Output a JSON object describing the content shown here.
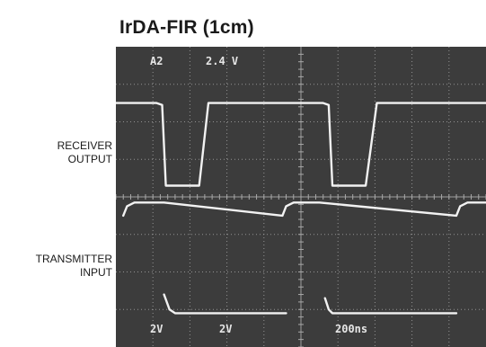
{
  "title": "IrDA-FIR (1cm)",
  "labels": {
    "receiver": [
      "RECEIVER",
      "OUTPUT"
    ],
    "transmitter": [
      "TRANSMITTER",
      "INPUT"
    ]
  },
  "colors": {
    "screen": "#3c3c3c",
    "trace": "#f2f2f2",
    "grid": "#a8a8a8"
  },
  "scope_readouts": {
    "top_channel": "A2",
    "top_value": "2.4 V",
    "ch1_scale": "2V",
    "ch2_scale": "2V",
    "timebase": "200ns"
  },
  "chart_data": {
    "type": "line",
    "title": "IrDA-FIR (1cm)",
    "grid": true,
    "x_units": "divisions",
    "y_units": "divisions",
    "xlim": [
      0,
      10
    ],
    "ylim": [
      0,
      8
    ],
    "series": [
      {
        "name": "RECEIVER OUTPUT",
        "x": [
          0,
          1.1,
          1.25,
          1.35,
          1.95,
          2.25,
          2.5,
          5.6,
          5.75,
          5.85,
          6.5,
          6.75,
          7.05,
          10
        ],
        "y": [
          6.5,
          6.5,
          6.45,
          4.3,
          4.3,
          4.3,
          6.5,
          6.5,
          6.45,
          4.3,
          4.3,
          4.3,
          6.5,
          6.5
        ]
      },
      {
        "name": "TRANSMITTER INPUT",
        "x": [
          0.2,
          0.3,
          0.5,
          1.3,
          4.5,
          4.6,
          4.8,
          5.5,
          9.2,
          9.3,
          9.5,
          10
        ],
        "y": [
          3.5,
          3.75,
          3.85,
          3.85,
          3.5,
          3.75,
          3.85,
          3.85,
          3.5,
          3.75,
          3.85,
          3.85
        ]
      },
      {
        "x": [
          1.3,
          1.45,
          1.6,
          4.6
        ],
        "y": [
          1.4,
          1.0,
          0.9,
          0.9
        ]
      },
      {
        "x": [
          5.65,
          5.75,
          5.85,
          9.2
        ],
        "y": [
          1.3,
          1.0,
          0.9,
          0.9
        ]
      }
    ]
  }
}
